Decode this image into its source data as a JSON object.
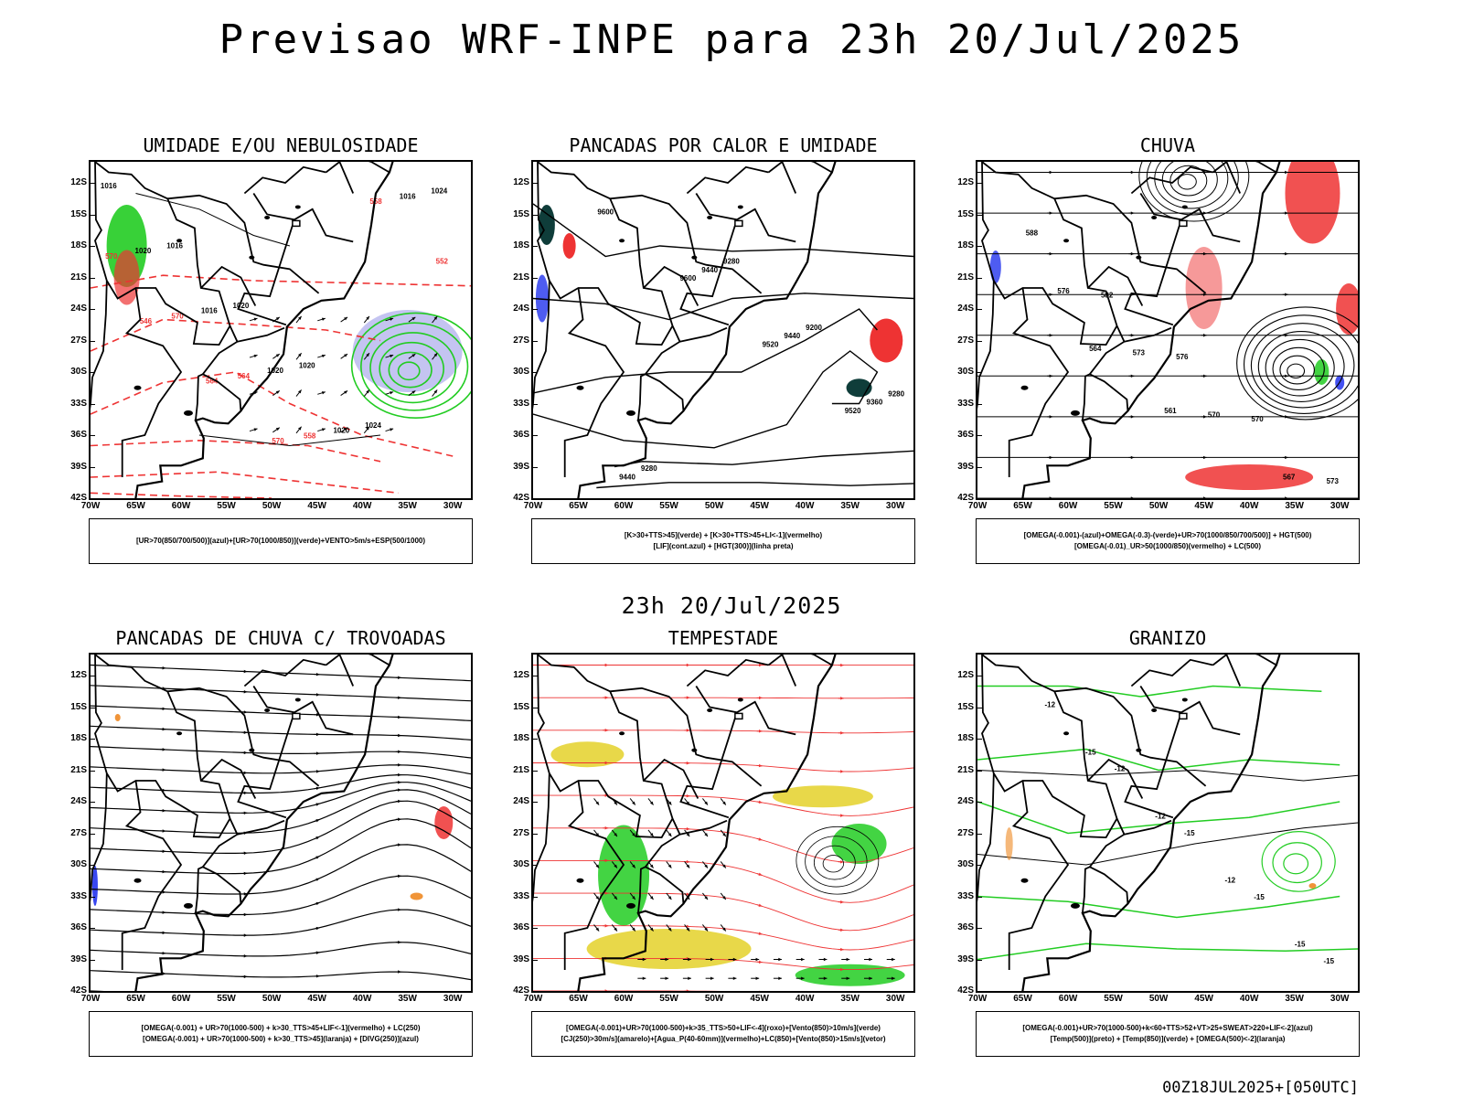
{
  "title": "Previsao WRF-INPE  para 23h 20/Jul/2025",
  "middle_title": "23h 20/Jul/2025",
  "footer": "00Z18JUL2025+[050UTC]",
  "chart_data": {
    "type": "map",
    "lat_ticks": [
      "12S",
      "15S",
      "18S",
      "21S",
      "24S",
      "27S",
      "30S",
      "33S",
      "36S",
      "39S",
      "42S"
    ],
    "lon_ticks": [
      "70W",
      "65W",
      "60W",
      "55W",
      "50W",
      "45W",
      "40W",
      "35W",
      "30W"
    ],
    "lon_range": [
      -70,
      -28
    ],
    "lat_range": [
      -42,
      -10
    ],
    "colors": {
      "blue": "#2233ee",
      "green": "#22cc22",
      "red": "#ee3333",
      "yellow": "#e6d435",
      "orange": "#ee8822",
      "darkteal": "#0f3d3a"
    },
    "panels": [
      {
        "title": "UMIDADE E/OU NEBULOSIDADE",
        "legend": [
          "[UR>70(850/700/500)](azul)+[UR>70(1000/850)](verde)+VENTO>5m/s+ESP(500/1000)"
        ],
        "contour_labels": [
          "1016",
          "1016",
          "1020",
          "1020",
          "1024",
          "1024",
          "1020",
          "1016",
          "1020",
          "1020",
          "1016",
          "570",
          "570",
          "564",
          "558",
          "558",
          "552",
          "546",
          "564",
          "570"
        ]
      },
      {
        "title": "PANCADAS POR CALOR E UMIDADE",
        "legend": [
          "[K>30+TTS>45](verde) + [K>30+TTS>45+LI<-1](vermelho)",
          "[LIF](cont.azul) + [HGT(300)](linha preta)"
        ],
        "contour_labels": [
          "9600",
          "9600",
          "9520",
          "9520",
          "9440",
          "9440",
          "9440",
          "9360",
          "9280",
          "9280",
          "9200",
          "9280"
        ]
      },
      {
        "title": "CHUVA",
        "legend": [
          "[OMEGA(-0.001)-(azul)+OMEGA(-0.3)-(verde)+UR>70(1000/850/700/500)] + HGT(500)",
          "[OMEGA(-0.01)_UR>50(1000/850)(vermelho) + LC(500)"
        ],
        "contour_labels": [
          "588",
          "582",
          "576",
          "570",
          "573",
          "576",
          "573",
          "570",
          "567",
          "567",
          "564",
          "561"
        ]
      },
      {
        "title": "PANCADAS DE CHUVA C/ TROVOADAS",
        "legend": [
          "[OMEGA(-0.001) + UR>70(1000-500) + k>30_TTS>45+LIF<-1](vermelho) + LC(250)",
          "[OMEGA(-0.001) + UR>70(1000-500) + k>30_TTS>45](laranja) + [DIVG(250)](azul)"
        ],
        "contour_labels": []
      },
      {
        "title": "TEMPESTADE",
        "legend": [
          "[OMEGA(-0.001)+UR>70(1000-500)+k>35_TTS>50+LIF<-4](roxo)+[Vento(850)>10m/s](verde)",
          "[CJ(250)>30m/s](amarelo)+[Agua_P(40-60mm)](vermelho)+LC(850)+[Vento(850)>15m/s](vetor)"
        ],
        "contour_labels": []
      },
      {
        "title": "GRANIZO",
        "legend": [
          "[OMEGA(-0.001)+UR>70(1000-500)+k<60+TTS>52+VT>25+SWEAT>220+LIF<-2](azul)",
          "[Temp(500)](preto) + [Temp(850)](verde) + [OMEGA(500)<-2](laranja)"
        ],
        "contour_labels": [
          "-12",
          "-12",
          "-15",
          "-15",
          "-15",
          "-15",
          "-12",
          "-12",
          "-15"
        ]
      }
    ]
  }
}
